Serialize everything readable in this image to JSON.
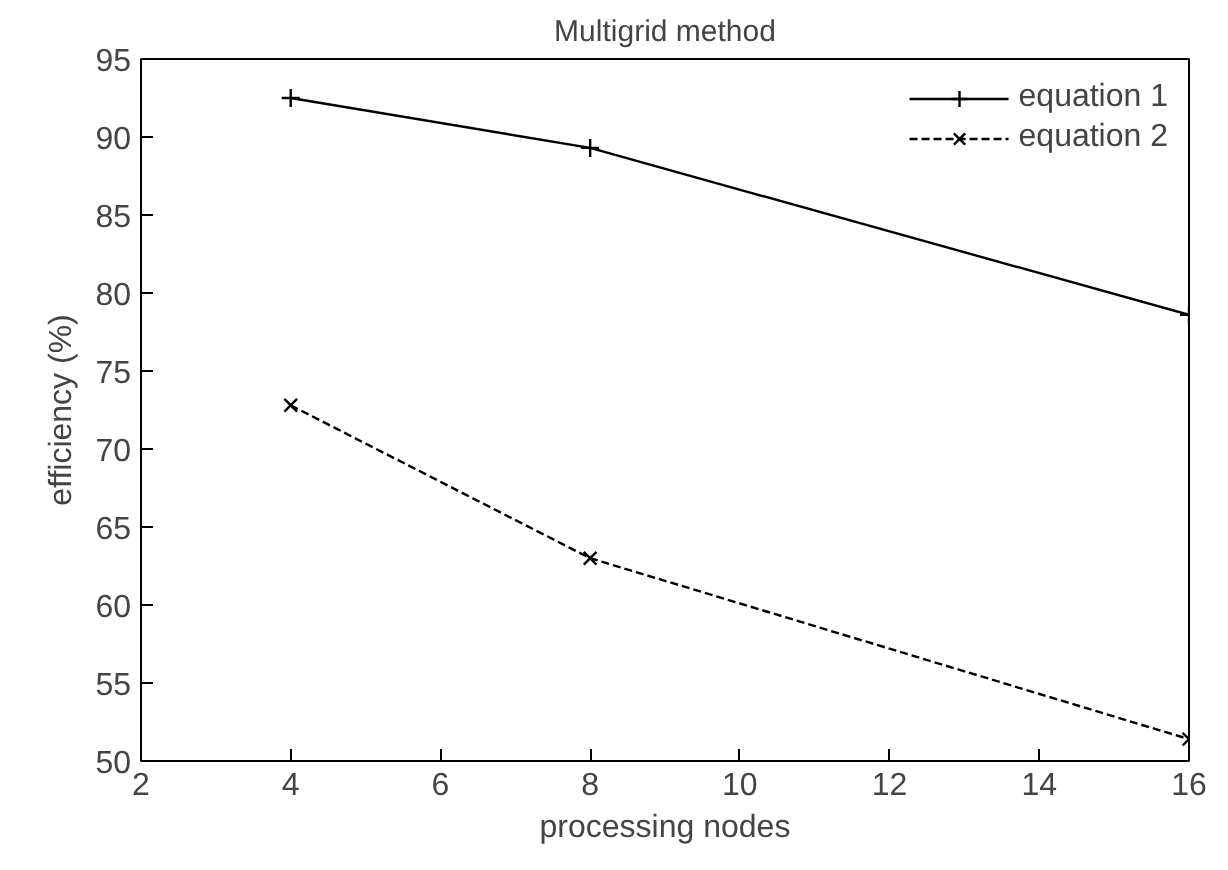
{
  "chart_data": {
    "type": "line",
    "title": "Multigrid method",
    "xlabel": "processing nodes",
    "ylabel": "efficiency (%)",
    "x": [
      4,
      8,
      16
    ],
    "series": [
      {
        "name": "equation 1",
        "color": "#000000",
        "values": [
          92.5,
          89.3,
          78.6
        ],
        "marker": "cross",
        "line_style": "solid"
      },
      {
        "name": "equation 2",
        "color": "#000000",
        "values": [
          72.8,
          63.0,
          51.4
        ],
        "marker": "x",
        "line_style": "dashed"
      }
    ],
    "xlim": [
      2,
      16
    ],
    "xticks": [
      2,
      4,
      6,
      8,
      10,
      12,
      14,
      16
    ],
    "ylim": [
      50,
      95
    ],
    "yticks": [
      50,
      55,
      60,
      65,
      70,
      75,
      80,
      85,
      90,
      95
    ],
    "grid": false,
    "legend": "top right"
  }
}
